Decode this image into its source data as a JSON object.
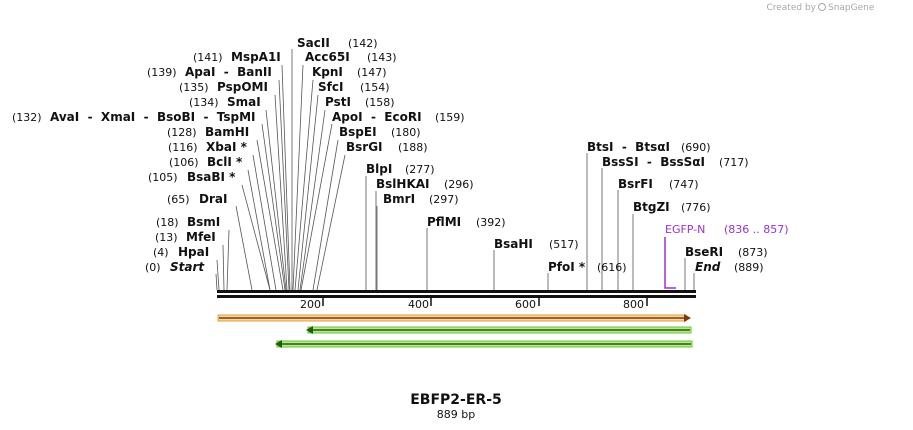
{
  "header": {
    "credit": "Created by",
    "brand": "SnapGene"
  },
  "map": {
    "title": "EBFP2-ER-5",
    "length": "889 bp",
    "axis_ticks": [
      "200",
      "400",
      "600",
      "800"
    ],
    "sites": [
      {
        "label": "SacII",
        "pos": "(142)"
      },
      {
        "label": "Acc65I",
        "pos": "(143)"
      },
      {
        "label": "KpnI",
        "pos": "(147)"
      },
      {
        "label": "SfcI",
        "pos": "(154)"
      },
      {
        "label": "PstI",
        "pos": "(158)"
      },
      {
        "label": "ApoI  -  EcoRI",
        "pos": "(159)"
      },
      {
        "label": "BspEI",
        "pos": "(180)"
      },
      {
        "label": "BsrGI",
        "pos": "(188)"
      },
      {
        "label": "BlpI",
        "pos": "(277)"
      },
      {
        "label": "BslHKAI",
        "pos": "(296)"
      },
      {
        "label": "BmrI",
        "pos": "(297)"
      },
      {
        "label": "PflMI",
        "pos": "(392)"
      },
      {
        "label": "BsaHI",
        "pos": "(517)"
      },
      {
        "label": "PfoI *",
        "pos": "(616)"
      },
      {
        "label": "BtsI  -  BtsαI",
        "pos": "(690)"
      },
      {
        "label": "BssSI  -  BssSαI",
        "pos": "(717)"
      },
      {
        "label": "BsrFI",
        "pos": "(747)"
      },
      {
        "label": "BtgZI",
        "pos": "(776)"
      },
      {
        "label": "BseRI",
        "pos": "(873)"
      },
      {
        "label": "End",
        "pos": "(889)"
      },
      {
        "label": "MspA1I",
        "pos": "(141)"
      },
      {
        "label": "ApaI  -  BanII",
        "pos": "(139)"
      },
      {
        "label": "PspOMI",
        "pos": "(135)"
      },
      {
        "label": "SmaI",
        "pos": "(134)"
      },
      {
        "label": "AvaI  -  XmaI  -  BsoBI  -  TspMI",
        "pos": "(132)"
      },
      {
        "label": "BamHI",
        "pos": "(128)"
      },
      {
        "label": "XbaI *",
        "pos": "(116)"
      },
      {
        "label": "BclI *",
        "pos": "(106)"
      },
      {
        "label": "BsaBI *",
        "pos": "(105)"
      },
      {
        "label": "DraI",
        "pos": "(65)"
      },
      {
        "label": "BsmI",
        "pos": "(18)"
      },
      {
        "label": "MfeI",
        "pos": "(13)"
      },
      {
        "label": "HpaI",
        "pos": "(4)"
      },
      {
        "label": "Start",
        "pos": "(0)"
      }
    ],
    "feature": {
      "label": "EGFP-N",
      "range": "(836 .. 857)"
    },
    "colors": {
      "feature": "#9b30d9",
      "orange_arrow": "#f0b060",
      "green_arrow": "#7fd04a"
    }
  }
}
